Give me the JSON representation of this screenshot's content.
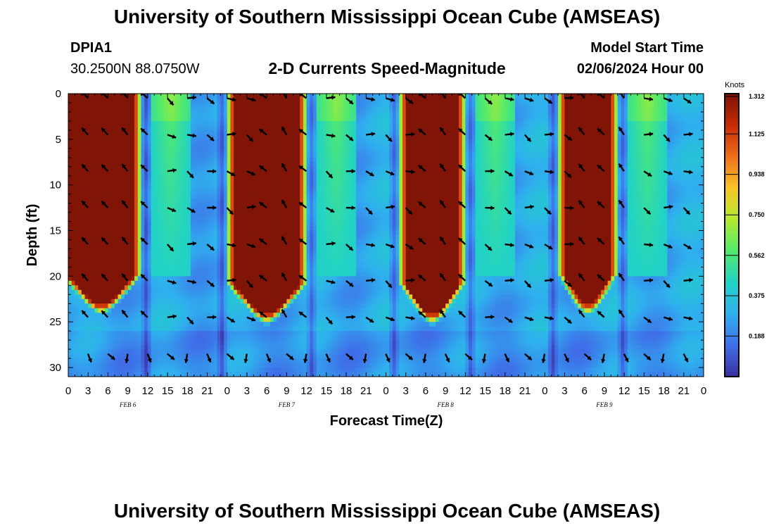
{
  "header": {
    "title": "University of Southern Mississippi Ocean Cube (AMSEAS)",
    "station": "DPIA1",
    "coords": "30.2500N  88.0750W",
    "chart_title": "2-D Currents Speed-Magnitude",
    "model_label": "Model Start Time",
    "model_time": "02/06/2024 Hour 00"
  },
  "footer_title": "University of Southern Mississippi Ocean Cube (AMSEAS)",
  "colorbar": {
    "unit": "Knots",
    "ticks": [
      "1.312",
      "1.125",
      "0.938",
      "0.750",
      "0.562",
      "0.375",
      "0.188"
    ],
    "tick_values": [
      1.312,
      1.125,
      0.938,
      0.75,
      0.562,
      0.375,
      0.188
    ],
    "range": [
      0.0,
      1.312
    ],
    "colors": [
      "#3a2f9e",
      "#3f6ee8",
      "#2fb0ee",
      "#22d3c4",
      "#52ea6c",
      "#b5ea30",
      "#f7c528",
      "#ee6f18",
      "#c82a05",
      "#7a1206"
    ]
  },
  "chart_data": {
    "type": "heatmap",
    "title": "2-D Currents Speed-Magnitude",
    "xlabel": "Forecast Time(Z)",
    "ylabel": "Depth (ft)",
    "xlim": [
      0,
      96
    ],
    "ylim": [
      31,
      0
    ],
    "x_tick_labels": [
      "0",
      "3",
      "6",
      "9",
      "12",
      "15",
      "18",
      "21",
      "0",
      "3",
      "6",
      "9",
      "12",
      "15",
      "18",
      "21",
      "0",
      "3",
      "6",
      "9",
      "12",
      "15",
      "18",
      "21",
      "0",
      "3",
      "6",
      "9",
      "12",
      "15",
      "18",
      "21",
      "0"
    ],
    "y_ticks": [
      0,
      5,
      10,
      15,
      20,
      25,
      30
    ],
    "y_tick_labels": [
      "0",
      "5",
      "10",
      "15",
      "20",
      "25",
      "30"
    ],
    "day_labels": [
      "FEB 6",
      "FEB 7",
      "FEB 8",
      "FEB 9"
    ],
    "value_unit": "knots",
    "max_value": 1.312,
    "strong_ebb_bands": [
      {
        "start_hour": 0,
        "end_hour": 10,
        "bottom_depth_ft": 23
      },
      {
        "start_hour": 25,
        "end_hour": 35,
        "bottom_depth_ft": 24
      },
      {
        "start_hour": 51,
        "end_hour": 59,
        "bottom_depth_ft": 24
      },
      {
        "start_hour": 75,
        "end_hour": 82,
        "bottom_depth_ft": 23
      }
    ],
    "vector_rows_depth_ft": [
      0.5,
      4.5,
      8.5,
      12.5,
      16.5,
      20.5,
      24.5,
      28.5
    ],
    "vector_columns_hours": [
      0,
      3,
      6,
      9,
      12,
      15,
      18,
      21,
      24,
      27,
      30,
      33,
      36,
      39,
      42,
      45,
      48,
      51,
      54,
      57,
      60,
      63,
      66,
      69,
      72,
      75,
      78,
      81,
      84,
      87,
      90,
      93
    ]
  }
}
